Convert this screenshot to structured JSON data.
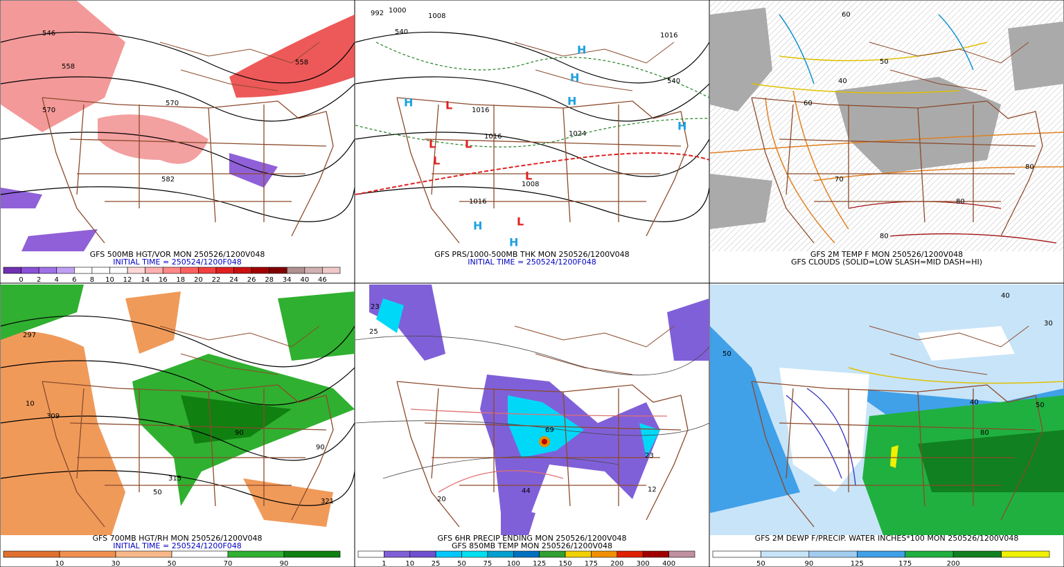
{
  "panels": [
    {
      "caption_lines": [
        "GFS 500MB HGT/VOR MON 250526/1200V048",
        "INITIAL TIME = 250524/1200F048"
      ],
      "caption_colors": [
        "#000000",
        "#0000c0"
      ],
      "colorbar": {
        "colors": [
          "#7030b0",
          "#8a50d8",
          "#a070e8",
          "#c0a0f4",
          "#ffffff",
          "#ffffff",
          "#ffffff",
          "#ffd8d8",
          "#ffb0b0",
          "#ff8888",
          "#ff6060",
          "#f04040",
          "#e02020",
          "#c81010",
          "#a00000",
          "#800000",
          "#b09090",
          "#d0b0b0",
          "#f0c8c8"
        ],
        "labels": [
          "0",
          "2",
          "4",
          "6",
          "8",
          "10",
          "12",
          "14",
          "16",
          "18",
          "20",
          "22",
          "24",
          "26",
          "28",
          "34",
          "40",
          "46"
        ]
      },
      "map_labels": [
        "546",
        "558",
        "570",
        "570",
        "558",
        "582"
      ]
    },
    {
      "caption_lines": [
        "GFS PRS/1000-500MB THK MON 250526/1200V048",
        "INITIAL TIME = 250524/1200F048"
      ],
      "caption_colors": [
        "#000000",
        "#0000c0"
      ],
      "map_labels": [
        "992",
        "1000",
        "1008",
        "1016",
        "1016",
        "1016",
        "1024",
        "1008",
        "1016",
        "540",
        "540",
        "L",
        "L",
        "L",
        "L",
        "L",
        "L",
        "H",
        "H",
        "H",
        "H",
        "H",
        "H",
        "H"
      ]
    },
    {
      "caption_lines": [
        "GFS 2M TEMP F MON 250526/1200V048",
        "GFS CLOUDS (SOLID=LOW SLASH=MID DASH=HI)"
      ],
      "caption_colors": [
        "#000000",
        "#000000"
      ],
      "map_labels": [
        "60",
        "50",
        "40",
        "70",
        "80",
        "80",
        "80",
        "60"
      ]
    },
    {
      "caption_lines": [
        "GFS 700MB HGT/RH MON 250526/1200V048",
        "INITIAL TIME = 250524/1200F048"
      ],
      "caption_colors": [
        "#000000",
        "#0000c0"
      ],
      "colorbar": {
        "colors": [
          "#e07030",
          "#f09050",
          "#f8b888",
          "#ffffff",
          "#30b030",
          "#108010"
        ],
        "labels": [
          "10",
          "30",
          "50",
          "70",
          "90"
        ]
      },
      "map_labels": [
        "297",
        "309",
        "315",
        "321",
        "10",
        "50",
        "90",
        "90"
      ]
    },
    {
      "caption_lines": [
        "GFS 6HR PRECIP ENDING MON 250526/1200V048",
        "GFS 850MB TEMP MON 250526/1200V048"
      ],
      "caption_colors": [
        "#000000",
        "#000000"
      ],
      "colorbar": {
        "colors": [
          "#ffffff",
          "#8060d8",
          "#7050d0",
          "#00c8ff",
          "#00e0f0",
          "#00a0d0",
          "#0070c0",
          "#30a030",
          "#f0d000",
          "#f09000",
          "#e02000",
          "#a00000",
          "#c090a0"
        ],
        "labels": [
          "1",
          "10",
          "25",
          "50",
          "75",
          "100",
          "125",
          "150",
          "175",
          "200",
          "300",
          "400"
        ]
      },
      "map_labels": [
        "23",
        "25",
        "69",
        "23",
        "12",
        "44",
        "20"
      ]
    },
    {
      "caption_lines": [
        "GFS 2M DEWP F/PRECIP. WATER INCHES*100 MON 250526/1200V048"
      ],
      "caption_colors": [
        "#000000"
      ],
      "colorbar": {
        "colors": [
          "#ffffff",
          "#c8e4f8",
          "#a0ccf0",
          "#40a0e8",
          "#20b040",
          "#108020",
          "#f0f000"
        ],
        "labels": [
          "50",
          "90",
          "125",
          "175",
          "200"
        ]
      },
      "map_labels": [
        "50",
        "40",
        "30",
        "40",
        "50",
        "80"
      ]
    }
  ]
}
